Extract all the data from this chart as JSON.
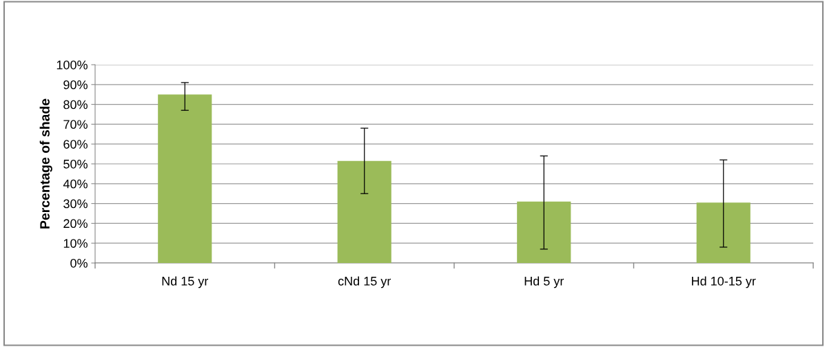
{
  "chart_data": {
    "type": "bar",
    "ylabel": "Percentage of shade",
    "categories": [
      "Nd 15 yr",
      "cNd 15 yr",
      "Hd 5 yr",
      "Hd 10-15 yr"
    ],
    "values": [
      85,
      51.5,
      31,
      30.5
    ],
    "errors": [
      [
        77,
        91
      ],
      [
        35,
        68
      ],
      [
        7,
        54
      ],
      [
        8,
        52
      ]
    ],
    "color": "#9bbb59",
    "ylim": [
      0,
      100
    ],
    "yticks": [
      {
        "value": 0,
        "label": "0%"
      },
      {
        "value": 10,
        "label": "10%"
      },
      {
        "value": 20,
        "label": "20%"
      },
      {
        "value": 30,
        "label": "30%"
      },
      {
        "value": 40,
        "label": "40%"
      },
      {
        "value": 50,
        "label": "50%"
      },
      {
        "value": 60,
        "label": "60%"
      },
      {
        "value": 70,
        "label": "70%"
      },
      {
        "value": 80,
        "label": "80%"
      },
      {
        "value": 90,
        "label": "90%"
      },
      {
        "value": 100,
        "label": "100%"
      }
    ],
    "grid": "y"
  }
}
